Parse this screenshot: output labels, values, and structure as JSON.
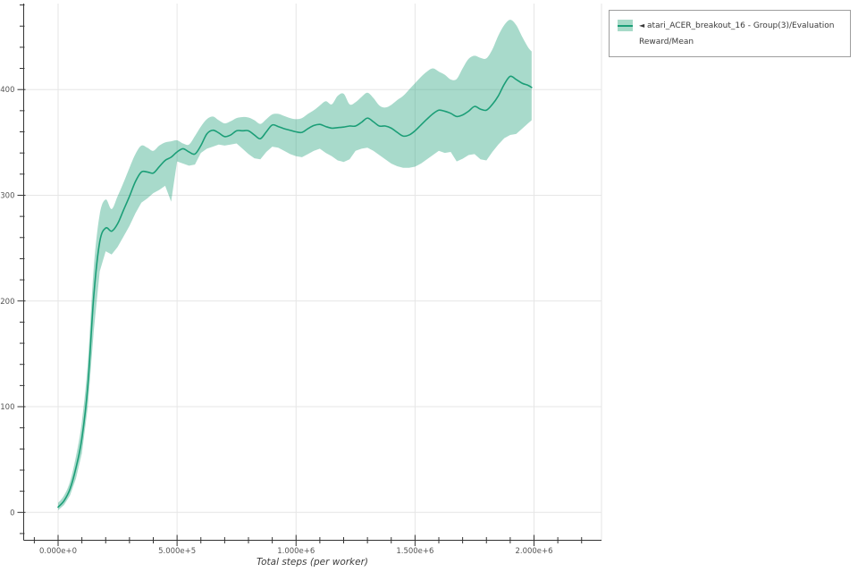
{
  "figure": {
    "background": "#ffffff"
  },
  "legend": {
    "marker": "◄",
    "label": "atari_ACER_breakout_16 - Group(3)/Evaluation Reward/Mean",
    "swatch_band_color": "#a7dac8",
    "swatch_line_color": "#1b9e77"
  },
  "chart_data": {
    "type": "line",
    "title": "",
    "xlabel": "Total steps (per worker)",
    "ylabel": "",
    "grid": true,
    "legend_position": "outside-top-right",
    "line_color": "#1b9e77",
    "band_fill": "rgba(27,158,119,0.38)",
    "grid_color": "#e6e6e6",
    "spine_color": "#333333",
    "tick_label_color": "#555555",
    "x_tick_values": [
      0,
      500000,
      1000000,
      1500000,
      2000000
    ],
    "x_tick_labels": [
      "0.000e+0",
      "5.000e+5",
      "1.000e+6",
      "1.500e+6",
      "2.000e+6"
    ],
    "y_tick_values": [
      0,
      100,
      200,
      300,
      400
    ],
    "xlim": [
      -146000,
      2285000
    ],
    "ylim": [
      -27,
      481
    ],
    "series": [
      {
        "name": "atari_ACER_breakout_16 - Group(3)/Evaluation Reward/Mean",
        "x_steps": [
          0,
          25000,
          50000,
          75000,
          100000,
          125000,
          150000,
          175000,
          200000,
          225000,
          250000,
          275000,
          300000,
          325000,
          350000,
          375000,
          400000,
          425000,
          450000,
          475000,
          500000,
          525000,
          550000,
          575000,
          600000,
          625000,
          650000,
          675000,
          700000,
          725000,
          750000,
          775000,
          800000,
          825000,
          850000,
          875000,
          900000,
          925000,
          950000,
          975000,
          1000000,
          1025000,
          1050000,
          1075000,
          1100000,
          1125000,
          1150000,
          1175000,
          1200000,
          1225000,
          1250000,
          1275000,
          1300000,
          1325000,
          1350000,
          1375000,
          1400000,
          1425000,
          1450000,
          1475000,
          1500000,
          1525000,
          1550000,
          1575000,
          1600000,
          1625000,
          1650000,
          1675000,
          1700000,
          1725000,
          1750000,
          1775000,
          1800000,
          1825000,
          1850000,
          1875000,
          1900000,
          1925000,
          1950000,
          1975000,
          1990000
        ],
        "mean": [
          5,
          11,
          22,
          42,
          70,
          120,
          205,
          256,
          269,
          266,
          273,
          286,
          299,
          313,
          322,
          322,
          321,
          327,
          333,
          336,
          341,
          344,
          341,
          339,
          347,
          358,
          361.5,
          359,
          355.5,
          357,
          361,
          361,
          361,
          357,
          353.5,
          360,
          366.5,
          365,
          363,
          361.5,
          360,
          359.5,
          363,
          366,
          367,
          365,
          363.5,
          364,
          364.5,
          365.5,
          365.5,
          369,
          373,
          369.5,
          365.5,
          365.5,
          363.5,
          359.5,
          356,
          357,
          361,
          366.5,
          372,
          377,
          380.5,
          379.5,
          377.5,
          374.5,
          376,
          379.5,
          384,
          381.5,
          380.5,
          386,
          394,
          405,
          412.5,
          409.5,
          406,
          404,
          402
        ],
        "band_low": [
          2,
          7,
          16,
          32,
          56,
          100,
          172,
          228,
          247,
          244,
          251,
          261,
          271,
          283,
          293,
          297,
          302,
          305,
          309,
          294,
          332,
          330,
          328,
          329,
          340,
          344,
          346,
          348,
          347,
          348,
          349,
          344,
          339,
          335,
          334,
          341,
          346,
          345,
          342,
          339,
          337,
          336,
          339,
          342,
          344,
          340,
          337,
          333,
          331.5,
          334,
          342,
          344,
          345,
          342,
          338,
          334,
          330,
          327.5,
          326,
          326,
          327,
          330,
          334,
          338,
          342,
          340,
          341,
          332,
          334.5,
          338,
          339,
          334,
          333,
          341,
          348,
          354,
          357,
          358,
          363,
          368,
          371
        ],
        "band_high": [
          9,
          16,
          29,
          53,
          86,
          142,
          232,
          282,
          296,
          287,
          299,
          312,
          326,
          339,
          347,
          345,
          342,
          347,
          350,
          351,
          352,
          349,
          348,
          356,
          365,
          372,
          374.5,
          371,
          368,
          370,
          373,
          374,
          373.5,
          371,
          367.5,
          372,
          376.5,
          377,
          375,
          373,
          372,
          373,
          377,
          380.5,
          385,
          389,
          386,
          394,
          396,
          386,
          388,
          393,
          397,
          392,
          385,
          383,
          385.5,
          390,
          394,
          400,
          406,
          412,
          417,
          420,
          417,
          414,
          409.5,
          410,
          420,
          429,
          432,
          430,
          429.5,
          438,
          451,
          461,
          466,
          461,
          450,
          440,
          436
        ]
      }
    ]
  }
}
